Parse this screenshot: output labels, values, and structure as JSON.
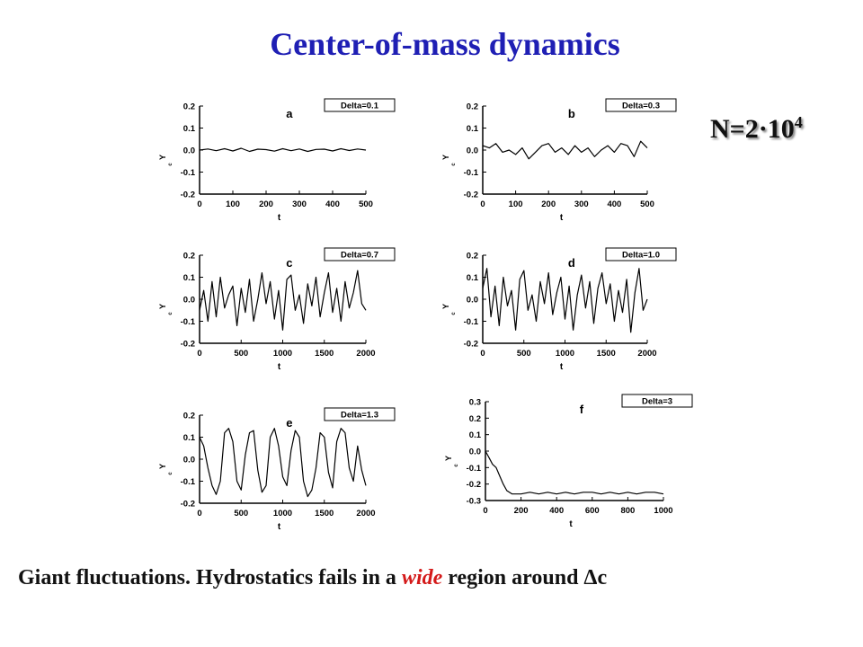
{
  "title": "Center-of-mass dynamics",
  "n_label": {
    "base": "N=2·10",
    "exp": "4"
  },
  "caption": {
    "before": "Giant fluctuations. Hydrostatics fails in a ",
    "emph": "wide",
    "after": " region around ",
    "symbol": "Δc"
  },
  "chart_data": [
    {
      "type": "line",
      "panel": "a",
      "legend": "Delta=0.1",
      "xlabel": "t",
      "ylabel": "Y",
      "xlim": [
        0,
        500
      ],
      "ylim": [
        -0.2,
        0.2
      ],
      "xticks": [
        0,
        100,
        200,
        300,
        400,
        500
      ],
      "yticks": [
        0.2,
        0.1,
        0.0,
        -0.1,
        -0.2
      ],
      "series": [
        {
          "x": [
            0,
            25,
            50,
            75,
            100,
            125,
            150,
            175,
            200,
            225,
            250,
            275,
            300,
            325,
            350,
            375,
            400,
            425,
            450,
            475,
            500
          ],
          "y": [
            0,
            0.005,
            -0.003,
            0.006,
            -0.004,
            0.008,
            -0.006,
            0.004,
            0.002,
            -0.005,
            0.006,
            -0.003,
            0.005,
            -0.006,
            0.003,
            0.004,
            -0.004,
            0.006,
            -0.002,
            0.005,
            0.0
          ]
        }
      ]
    },
    {
      "type": "line",
      "panel": "b",
      "legend": "Delta=0.3",
      "xlabel": "t",
      "ylabel": "Y",
      "xlim": [
        0,
        500
      ],
      "ylim": [
        -0.2,
        0.2
      ],
      "xticks": [
        0,
        100,
        200,
        300,
        400,
        500
      ],
      "yticks": [
        0.2,
        0.1,
        0.0,
        -0.1,
        -0.2
      ],
      "series": [
        {
          "x": [
            0,
            20,
            40,
            60,
            80,
            100,
            120,
            140,
            160,
            180,
            200,
            220,
            240,
            260,
            280,
            300,
            320,
            340,
            360,
            380,
            400,
            420,
            440,
            460,
            480,
            500
          ],
          "y": [
            0.02,
            0.01,
            0.03,
            -0.01,
            0.0,
            -0.02,
            0.01,
            -0.04,
            -0.01,
            0.02,
            0.03,
            -0.01,
            0.01,
            -0.02,
            0.02,
            -0.01,
            0.01,
            -0.03,
            0.0,
            0.02,
            -0.01,
            0.03,
            0.02,
            -0.03,
            0.04,
            0.01
          ]
        }
      ]
    },
    {
      "type": "line",
      "panel": "c",
      "legend": "Delta=0.7",
      "xlabel": "t",
      "ylabel": "Y",
      "xlim": [
        0,
        2000
      ],
      "ylim": [
        -0.2,
        0.2
      ],
      "xticks": [
        0,
        500,
        1000,
        1500,
        2000
      ],
      "yticks": [
        0.2,
        0.1,
        0.0,
        -0.1,
        -0.2
      ],
      "series": [
        {
          "x": [
            0,
            50,
            100,
            150,
            200,
            250,
            300,
            350,
            400,
            450,
            500,
            550,
            600,
            650,
            700,
            750,
            800,
            850,
            900,
            950,
            1000,
            1050,
            1100,
            1150,
            1200,
            1250,
            1300,
            1350,
            1400,
            1450,
            1500,
            1550,
            1600,
            1650,
            1700,
            1750,
            1800,
            1850,
            1900,
            1950,
            2000
          ],
          "y": [
            -0.05,
            0.04,
            -0.1,
            0.08,
            -0.08,
            0.1,
            -0.04,
            0.02,
            0.06,
            -0.12,
            0.05,
            -0.06,
            0.09,
            -0.1,
            0.0,
            0.12,
            -0.02,
            0.08,
            -0.09,
            0.04,
            -0.14,
            0.09,
            0.11,
            -0.05,
            0.02,
            -0.11,
            0.07,
            -0.03,
            0.1,
            -0.08,
            0.03,
            0.12,
            -0.06,
            0.05,
            -0.1,
            0.08,
            -0.04,
            0.03,
            0.13,
            -0.02,
            -0.05
          ]
        }
      ]
    },
    {
      "type": "line",
      "panel": "d",
      "legend": "Delta=1.0",
      "xlabel": "t",
      "ylabel": "Y",
      "xlim": [
        0,
        2000
      ],
      "ylim": [
        -0.2,
        0.2
      ],
      "xticks": [
        0,
        500,
        1000,
        1500,
        2000
      ],
      "yticks": [
        0.2,
        0.1,
        0.0,
        -0.1,
        -0.2
      ],
      "series": [
        {
          "x": [
            0,
            50,
            100,
            150,
            200,
            250,
            300,
            350,
            400,
            450,
            500,
            550,
            600,
            650,
            700,
            750,
            800,
            850,
            900,
            950,
            1000,
            1050,
            1100,
            1150,
            1200,
            1250,
            1300,
            1350,
            1400,
            1450,
            1500,
            1550,
            1600,
            1650,
            1700,
            1750,
            1800,
            1850,
            1900,
            1950,
            2000
          ],
          "y": [
            0.05,
            0.14,
            -0.08,
            0.06,
            -0.12,
            0.1,
            -0.03,
            0.04,
            -0.14,
            0.09,
            0.13,
            -0.05,
            0.02,
            -0.1,
            0.08,
            -0.02,
            0.12,
            -0.07,
            0.03,
            0.1,
            -0.09,
            0.06,
            -0.14,
            0.02,
            0.11,
            -0.04,
            0.08,
            -0.11,
            0.05,
            0.12,
            -0.02,
            0.07,
            -0.1,
            0.04,
            -0.06,
            0.09,
            -0.15,
            0.03,
            0.14,
            -0.05,
            0.0
          ]
        }
      ]
    },
    {
      "type": "line",
      "panel": "e",
      "legend": "Delta=1.3",
      "xlabel": "t",
      "ylabel": "Y",
      "xlim": [
        0,
        2000
      ],
      "ylim": [
        -0.2,
        0.2
      ],
      "xticks": [
        0,
        500,
        1000,
        1500,
        2000
      ],
      "yticks": [
        0.2,
        0.1,
        0.0,
        -0.1,
        -0.2
      ],
      "series": [
        {
          "x": [
            0,
            50,
            100,
            150,
            200,
            250,
            300,
            350,
            400,
            450,
            500,
            550,
            600,
            650,
            700,
            750,
            800,
            850,
            900,
            950,
            1000,
            1050,
            1100,
            1150,
            1200,
            1250,
            1300,
            1350,
            1400,
            1450,
            1500,
            1550,
            1600,
            1650,
            1700,
            1750,
            1800,
            1850,
            1900,
            1950,
            2000
          ],
          "y": [
            0.1,
            0.06,
            -0.04,
            -0.12,
            -0.16,
            -0.1,
            0.12,
            0.14,
            0.08,
            -0.1,
            -0.14,
            0.02,
            0.12,
            0.13,
            -0.05,
            -0.15,
            -0.12,
            0.1,
            0.14,
            0.06,
            -0.08,
            -0.12,
            0.04,
            0.13,
            0.1,
            -0.1,
            -0.17,
            -0.14,
            -0.04,
            0.12,
            0.1,
            -0.06,
            -0.13,
            0.08,
            0.14,
            0.12,
            -0.04,
            -0.1,
            0.06,
            -0.05,
            -0.12
          ]
        }
      ]
    },
    {
      "type": "line",
      "panel": "f",
      "legend": "Delta=3",
      "xlabel": "t",
      "ylabel": "Y",
      "xlim": [
        0,
        1000
      ],
      "ylim": [
        -0.3,
        0.3
      ],
      "xticks": [
        0,
        200,
        400,
        600,
        800,
        1000
      ],
      "yticks": [
        0.3,
        0.2,
        0.1,
        0.0,
        -0.1,
        -0.2,
        -0.3
      ],
      "series": [
        {
          "x": [
            0,
            20,
            40,
            60,
            80,
            100,
            120,
            150,
            200,
            250,
            300,
            350,
            400,
            450,
            500,
            550,
            600,
            650,
            700,
            750,
            800,
            850,
            900,
            950,
            1000
          ],
          "y": [
            0.0,
            -0.04,
            -0.08,
            -0.1,
            -0.15,
            -0.2,
            -0.24,
            -0.26,
            -0.26,
            -0.25,
            -0.26,
            -0.25,
            -0.26,
            -0.25,
            -0.26,
            -0.25,
            -0.25,
            -0.26,
            -0.25,
            -0.26,
            -0.25,
            -0.26,
            -0.25,
            -0.25,
            -0.26
          ]
        }
      ]
    }
  ]
}
